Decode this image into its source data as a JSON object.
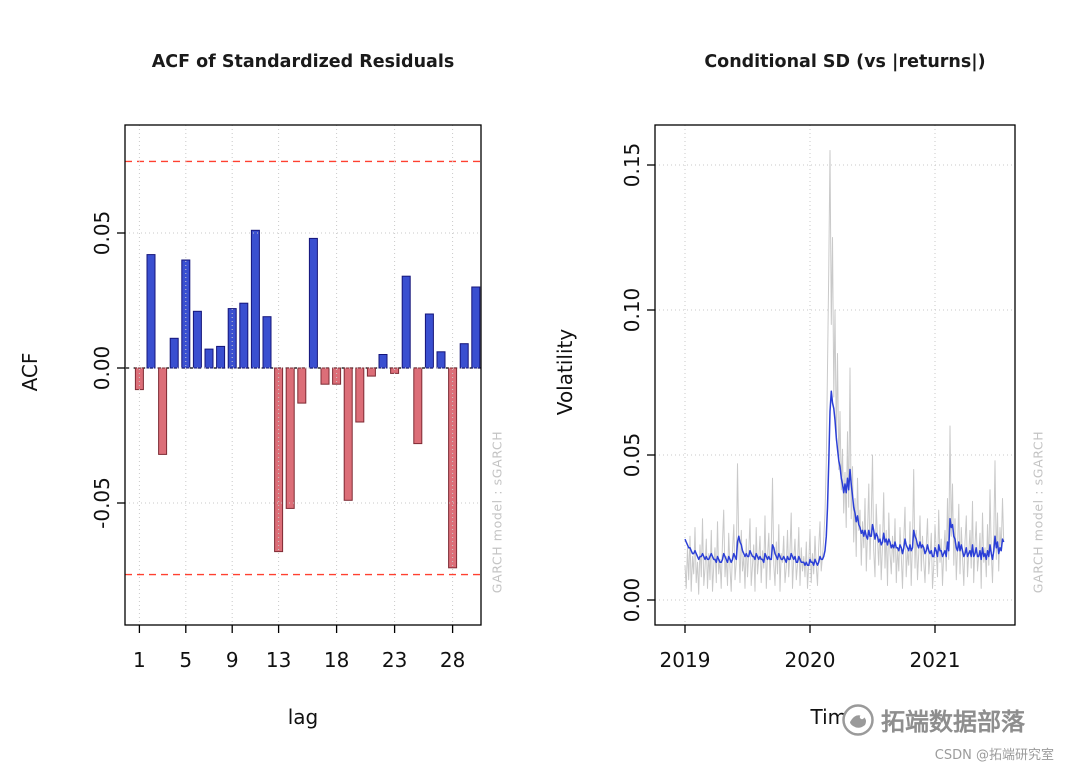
{
  "page": {
    "background": "#ffffff"
  },
  "watermark": {
    "brand": "拓端数据部落",
    "credit": "CSDN @拓端研究室"
  },
  "chart_data": [
    {
      "id": "acf",
      "type": "bar",
      "title": "ACF of Standardized Residuals",
      "xlabel": "lag",
      "ylabel": "ACF",
      "side_label": "GARCH model : sGARCH",
      "x_ticks": [
        1,
        5,
        9,
        13,
        18,
        23,
        28
      ],
      "y_ticks": [
        -0.05,
        0,
        0.05
      ],
      "y_tick_labels": [
        "-0.05",
        "0.00",
        "0.05"
      ],
      "ylim": [
        -0.095,
        0.09
      ],
      "grid": true,
      "zero_line": 0,
      "confidence_bands": [
        0.0765,
        -0.0765
      ],
      "categories": [
        1,
        2,
        3,
        4,
        5,
        6,
        7,
        8,
        9,
        10,
        11,
        12,
        13,
        14,
        15,
        16,
        17,
        18,
        19,
        20,
        21,
        22,
        23,
        24,
        25,
        26,
        27,
        28,
        29,
        30
      ],
      "values": [
        -0.008,
        0.042,
        -0.032,
        0.011,
        0.04,
        0.021,
        0.007,
        0.008,
        0.022,
        0.024,
        0.051,
        0.019,
        -0.068,
        -0.052,
        -0.013,
        0.048,
        -0.006,
        -0.006,
        -0.049,
        -0.02,
        -0.003,
        0.005,
        -0.002,
        0.034,
        -0.028,
        0.02,
        0.006,
        -0.074,
        0.009,
        0.03
      ],
      "colors": {
        "positive": "#3a4fd0",
        "positive_border": "#14147a",
        "negative": "#dc6e78",
        "negative_border": "#7e2a33",
        "band": "#ff4030",
        "zero": "#000000",
        "grid": "#c9c9c9"
      }
    },
    {
      "id": "csd",
      "type": "line",
      "title": "Conditional SD (vs |returns|)",
      "xlabel": "Time",
      "ylabel": "Volatility",
      "side_label": "GARCH model : sGARCH",
      "x_ticks": [
        2019,
        2020,
        2021
      ],
      "y_ticks": [
        0,
        0.05,
        0.1,
        0.15
      ],
      "y_tick_labels": [
        "0.00",
        "0.05",
        "0.10",
        "0.15"
      ],
      "xlim": [
        2018.76,
        2021.64
      ],
      "ylim": [
        0,
        0.164
      ],
      "grid": true,
      "x_start": 2019.0,
      "x_step": 0.01,
      "series": [
        {
          "name": "abs-returns",
          "color": "#c9c9c9",
          "width": 1,
          "values": [
            0.012,
            0.004,
            0.018,
            0.007,
            0.022,
            0.003,
            0.015,
            0.009,
            0.025,
            0.006,
            0.013,
            0.002,
            0.019,
            0.008,
            0.028,
            0.005,
            0.011,
            0.021,
            0.004,
            0.016,
            0.007,
            0.024,
            0.003,
            0.012,
            0.018,
            0.006,
            0.027,
            0.009,
            0.014,
            0.004,
            0.02,
            0.031,
            0.008,
            0.015,
            0.005,
            0.023,
            0.011,
            0.003,
            0.017,
            0.026,
            0.007,
            0.013,
            0.047,
            0.019,
            0.006,
            0.024,
            0.01,
            0.015,
            0.004,
            0.021,
            0.008,
            0.016,
            0.028,
            0.005,
            0.012,
            0.019,
            0.003,
            0.025,
            0.009,
            0.014,
            0.022,
            0.006,
            0.017,
            0.011,
            0.029,
            0.004,
            0.015,
            0.023,
            0.007,
            0.018,
            0.042,
            0.012,
            0.005,
            0.02,
            0.009,
            0.026,
            0.003,
            0.016,
            0.013,
            0.022,
            0.006,
            0.011,
            0.024,
            0.008,
            0.017,
            0.03,
            0.004,
            0.014,
            0.021,
            0.007,
            0.012,
            0.025,
            0.005,
            0.018,
            0.01,
            0.015,
            0.008,
            0.02,
            0.004,
            0.013,
            0.024,
            0.006,
            0.016,
            0.009,
            0.022,
            0.012,
            0.005,
            0.018,
            0.027,
            0.01,
            0.015,
            0.021,
            0.03,
            0.048,
            0.08,
            0.115,
            0.155,
            0.095,
            0.125,
            0.07,
            0.1,
            0.055,
            0.085,
            0.045,
            0.065,
            0.038,
            0.052,
            0.03,
            0.044,
            0.025,
            0.058,
            0.032,
            0.08,
            0.028,
            0.046,
            0.02,
            0.035,
            0.015,
            0.042,
            0.024,
            0.031,
            0.012,
            0.027,
            0.018,
            0.035,
            0.01,
            0.023,
            0.04,
            0.014,
            0.029,
            0.05,
            0.017,
            0.008,
            0.033,
            0.021,
            0.012,
            0.026,
            0.007,
            0.019,
            0.037,
            0.011,
            0.024,
            0.005,
            0.03,
            0.016,
            0.009,
            0.022,
            0.013,
            0.028,
            0.006,
            0.018,
            0.01,
            0.025,
            0.015,
            0.004,
            0.021,
            0.032,
            0.008,
            0.017,
            0.012,
            0.027,
            0.005,
            0.02,
            0.045,
            0.011,
            0.024,
            0.007,
            0.016,
            0.029,
            0.01,
            0.022,
            0.013,
            0.006,
            0.019,
            0.028,
            0.009,
            0.015,
            0.023,
            0.004,
            0.012,
            0.026,
            0.017,
            0.008,
            0.031,
            0.013,
            0.021,
            0.005,
            0.016,
            0.024,
            0.01,
            0.035,
            0.014,
            0.06,
            0.022,
            0.04,
            0.012,
            0.028,
            0.007,
            0.018,
            0.033,
            0.009,
            0.025,
            0.015,
            0.005,
            0.02,
            0.029,
            0.008,
            0.016,
            0.024,
            0.011,
            0.034,
            0.006,
            0.019,
            0.027,
            0.01,
            0.015,
            0.023,
            0.004,
            0.03,
            0.013,
            0.018,
            0.008,
            0.026,
            0.012,
            0.038,
            0.016,
            0.006,
            0.022,
            0.048,
            0.014,
            0.03,
            0.01,
            0.025,
            0.017,
            0.035,
            0.02
          ]
        },
        {
          "name": "conditional-sd",
          "color": "#2b3fd6",
          "width": 1.5,
          "values": [
            0.021,
            0.02,
            0.019,
            0.018,
            0.018,
            0.017,
            0.016,
            0.016,
            0.017,
            0.016,
            0.015,
            0.014,
            0.015,
            0.015,
            0.016,
            0.015,
            0.014,
            0.015,
            0.014,
            0.014,
            0.015,
            0.016,
            0.015,
            0.014,
            0.014,
            0.013,
            0.015,
            0.014,
            0.013,
            0.013,
            0.014,
            0.016,
            0.015,
            0.014,
            0.013,
            0.015,
            0.014,
            0.013,
            0.014,
            0.016,
            0.015,
            0.014,
            0.02,
            0.022,
            0.02,
            0.019,
            0.017,
            0.016,
            0.015,
            0.016,
            0.015,
            0.015,
            0.017,
            0.016,
            0.015,
            0.015,
            0.014,
            0.016,
            0.015,
            0.014,
            0.015,
            0.014,
            0.014,
            0.013,
            0.016,
            0.015,
            0.014,
            0.015,
            0.014,
            0.014,
            0.019,
            0.018,
            0.016,
            0.015,
            0.014,
            0.016,
            0.015,
            0.014,
            0.014,
            0.015,
            0.014,
            0.013,
            0.015,
            0.014,
            0.014,
            0.016,
            0.015,
            0.014,
            0.015,
            0.013,
            0.013,
            0.015,
            0.014,
            0.013,
            0.013,
            0.013,
            0.012,
            0.013,
            0.012,
            0.012,
            0.014,
            0.013,
            0.013,
            0.012,
            0.014,
            0.013,
            0.012,
            0.013,
            0.015,
            0.014,
            0.014,
            0.015,
            0.017,
            0.022,
            0.032,
            0.048,
            0.065,
            0.072,
            0.068,
            0.066,
            0.062,
            0.056,
            0.052,
            0.048,
            0.046,
            0.042,
            0.04,
            0.037,
            0.04,
            0.037,
            0.042,
            0.038,
            0.045,
            0.04,
            0.036,
            0.032,
            0.03,
            0.027,
            0.029,
            0.026,
            0.025,
            0.023,
            0.024,
            0.022,
            0.024,
            0.022,
            0.021,
            0.024,
            0.022,
            0.022,
            0.026,
            0.024,
            0.021,
            0.023,
            0.022,
            0.02,
            0.021,
            0.019,
            0.02,
            0.023,
            0.02,
            0.021,
            0.019,
            0.021,
            0.02,
            0.018,
            0.019,
            0.018,
            0.02,
            0.018,
            0.018,
            0.017,
            0.019,
            0.018,
            0.016,
            0.018,
            0.021,
            0.019,
            0.018,
            0.017,
            0.019,
            0.017,
            0.018,
            0.024,
            0.022,
            0.021,
            0.019,
            0.018,
            0.02,
            0.018,
            0.019,
            0.018,
            0.016,
            0.017,
            0.019,
            0.017,
            0.016,
            0.017,
            0.015,
            0.015,
            0.018,
            0.017,
            0.015,
            0.019,
            0.017,
            0.017,
            0.015,
            0.016,
            0.017,
            0.015,
            0.02,
            0.017,
            0.028,
            0.025,
            0.026,
            0.022,
            0.021,
            0.018,
            0.017,
            0.02,
            0.017,
            0.019,
            0.017,
            0.015,
            0.016,
            0.018,
            0.015,
            0.016,
            0.017,
            0.015,
            0.019,
            0.015,
            0.016,
            0.018,
            0.015,
            0.015,
            0.017,
            0.014,
            0.018,
            0.015,
            0.016,
            0.014,
            0.017,
            0.015,
            0.019,
            0.016,
            0.014,
            0.017,
            0.022,
            0.018,
            0.02,
            0.016,
            0.018,
            0.017,
            0.021,
            0.02
          ]
        }
      ],
      "colors": {
        "grid": "#c9c9c9"
      }
    }
  ]
}
